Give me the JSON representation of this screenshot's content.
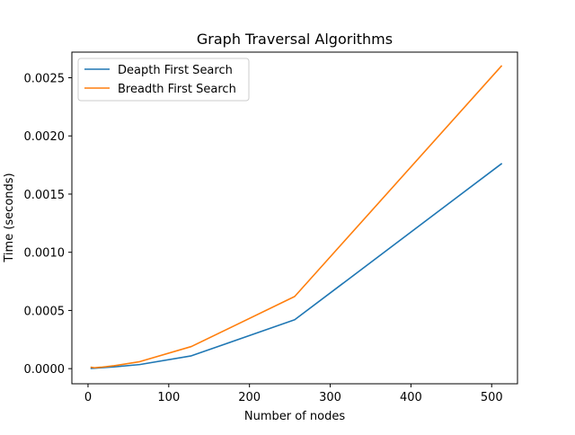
{
  "chart_data": {
    "type": "line",
    "title": "Graph Traversal Algorithms",
    "xlabel": "Number of nodes",
    "ylabel": "Time (seconds)",
    "xlim": [
      -20,
      532
    ],
    "ylim": [
      -0.00013,
      0.00272
    ],
    "xticks": [
      0,
      100,
      200,
      300,
      400,
      500
    ],
    "xtick_labels": [
      "0",
      "100",
      "200",
      "300",
      "400",
      "500"
    ],
    "yticks": [
      0,
      0.0005,
      0.001,
      0.0015,
      0.002,
      0.0025
    ],
    "ytick_labels": [
      "0.0000",
      "0.0005",
      "0.0010",
      "0.0015",
      "0.0020",
      "0.0025"
    ],
    "legend_position": "upper-left",
    "grid": false,
    "x": [
      4,
      8,
      16,
      32,
      64,
      128,
      256,
      512
    ],
    "series": [
      {
        "name": "Deapth First Search",
        "color": "#1f77b4",
        "values": [
          2e-06,
          4e-06,
          7e-06,
          1.5e-05,
          3.5e-05,
          0.00011,
          0.00042,
          0.00176
        ]
      },
      {
        "name": "Breadth First Search",
        "color": "#ff7f0e",
        "values": [
          1.2e-05,
          8e-06,
          1.2e-05,
          2.5e-05,
          6e-05,
          0.00019,
          0.00062,
          0.0026
        ]
      }
    ]
  }
}
